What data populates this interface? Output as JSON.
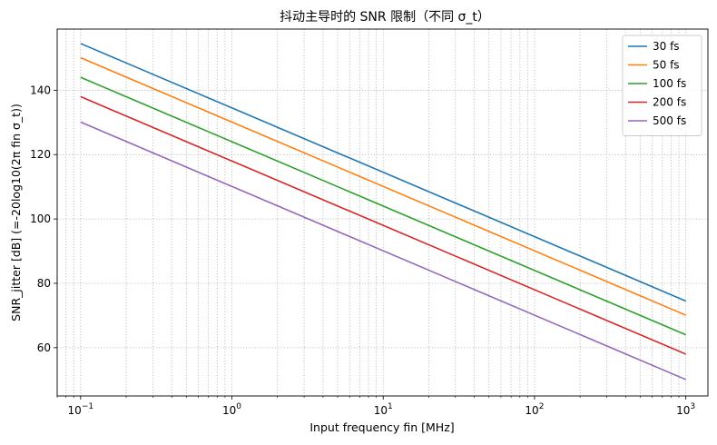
{
  "chart_data": {
    "type": "line",
    "title": "抖动主导时的 SNR 限制（不同 σ_t）",
    "xlabel": "Input frequency fin [MHz]",
    "ylabel": "SNR_jitter [dB]  (=-20log10(2π fin σ_t))",
    "xscale": "log",
    "xlim": [
      0.07,
      1400
    ],
    "ylim": [
      45,
      159
    ],
    "x_ticks": [
      {
        "value": 0.1,
        "base": "10",
        "exp": "−1"
      },
      {
        "value": 1,
        "base": "10",
        "exp": "0"
      },
      {
        "value": 10,
        "base": "10",
        "exp": "1"
      },
      {
        "value": 100,
        "base": "10",
        "exp": "2"
      },
      {
        "value": 1000,
        "base": "10",
        "exp": "3"
      }
    ],
    "y_ticks": [
      {
        "value": 60,
        "label": "60"
      },
      {
        "value": 80,
        "label": "80"
      },
      {
        "value": 100,
        "label": "100"
      },
      {
        "value": 120,
        "label": "120"
      },
      {
        "value": 140,
        "label": "140"
      }
    ],
    "grid": true,
    "grid_minor": true,
    "legend_position": "top-right",
    "x": [
      0.1,
      1000
    ],
    "series": [
      {
        "name": "30 fs",
        "color": "#1f77b4",
        "values": [
          154.5,
          74.5
        ]
      },
      {
        "name": "50 fs",
        "color": "#ff7f0e",
        "values": [
          150.1,
          70.1
        ]
      },
      {
        "name": "100 fs",
        "color": "#2ca02c",
        "values": [
          144.0,
          64.0
        ]
      },
      {
        "name": "200 fs",
        "color": "#d62728",
        "values": [
          138.0,
          58.0
        ]
      },
      {
        "name": "500 fs",
        "color": "#9467bd",
        "values": [
          130.1,
          50.1
        ]
      }
    ]
  }
}
